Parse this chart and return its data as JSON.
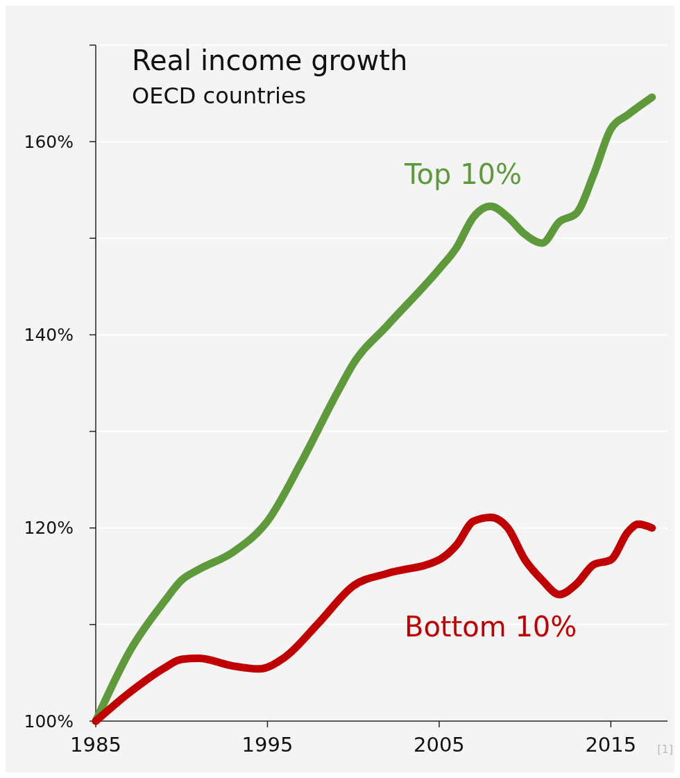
{
  "chart_data": {
    "type": "line",
    "title": "Real income growth",
    "subtitle": "OECD countries",
    "series": [
      {
        "name": "Top 10%",
        "color": "#5e9a3c",
        "x": [
          1985,
          1987,
          1989,
          1990,
          1991,
          1993,
          1995,
          1997,
          1999,
          2000,
          2002,
          2005,
          2006,
          2007,
          2008,
          2009,
          2010,
          2011,
          2012,
          2013,
          2014,
          2015,
          2016,
          2017.4
        ],
        "values": [
          100,
          107.3,
          112.4,
          114.6,
          115.7,
          117.5,
          120.7,
          126.9,
          133.8,
          137,
          141,
          146.8,
          149,
          152.2,
          153.3,
          152.2,
          150.4,
          149.5,
          151.7,
          152.6,
          156.6,
          161.3,
          162.8,
          164.6
        ]
      },
      {
        "name": "Bottom 10%",
        "color": "#c00000",
        "x": [
          1985,
          1987,
          1989,
          1990,
          1991,
          1993,
          1994.5,
          1996,
          1998,
          2000,
          2002,
          2005,
          2006,
          2007,
          2008,
          2009,
          2010,
          2011,
          2012,
          2013,
          2014,
          2015,
          2016,
          2016.6,
          2017.4
        ],
        "values": [
          100,
          103,
          105.5,
          106.4,
          106.5,
          105.7,
          105.4,
          106.6,
          110.2,
          114,
          115.3,
          116.7,
          118.2,
          120.7,
          121.1,
          120,
          116.7,
          114.6,
          113.1,
          114.2,
          116.2,
          116.7,
          119.6,
          120.4,
          120
        ]
      }
    ],
    "xlim": [
      1985,
      2018.3
    ],
    "xticks": [
      1985,
      1995,
      2005,
      2015
    ],
    "ylim": [
      100,
      170
    ],
    "yticks": [
      {
        "value": 100,
        "label": "100%"
      },
      {
        "value": 110,
        "label": null
      },
      {
        "value": 120,
        "label": "120%"
      },
      {
        "value": 130,
        "label": null
      },
      {
        "value": 140,
        "label": "140%"
      },
      {
        "value": 150,
        "label": null
      },
      {
        "value": 160,
        "label": "160%"
      },
      {
        "value": 170,
        "label": null
      }
    ],
    "grid": "y",
    "legend": false,
    "marker": "none",
    "line_style": "solid",
    "annotations": [
      "[1]"
    ]
  }
}
